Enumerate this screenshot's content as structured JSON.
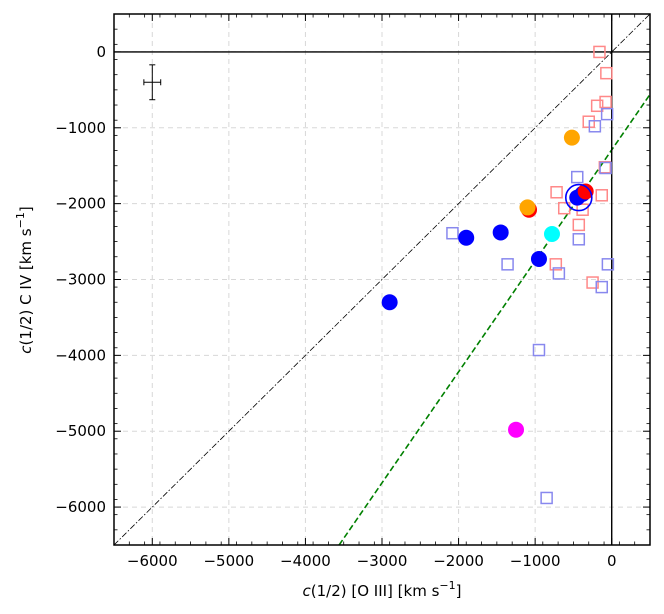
{
  "chart_data": {
    "type": "scatter",
    "title": "",
    "xlabel_html": [
      "c",
      "(1/2) [O III] [km s",
      "−1",
      "]"
    ],
    "ylabel_html": [
      "c",
      "(1/2) C IV [km s",
      "−1",
      "]"
    ],
    "xlim": [
      -6500,
      500
    ],
    "ylim": [
      -6500,
      500
    ],
    "xticks": [
      -6000,
      -5000,
      -4000,
      -3000,
      -2000,
      -1000,
      0
    ],
    "yticks": [
      -6000,
      -5000,
      -4000,
      -3000,
      -2000,
      -1000,
      0
    ],
    "xtick_labels": [
      "−6000",
      "−5000",
      "−4000",
      "−3000",
      "−2000",
      "−1000",
      "0"
    ],
    "ytick_labels": [
      "−6000",
      "−5000",
      "−4000",
      "−3000",
      "−2000",
      "−1000",
      "0"
    ],
    "grid": true,
    "reference_lines": [
      {
        "name": "one-to-one",
        "style": "dashdot",
        "color": "#000000",
        "points": [
          [
            -6500,
            -6500
          ],
          [
            500,
            500
          ]
        ]
      },
      {
        "name": "fit",
        "style": "dashed",
        "color": "#008000",
        "points": [
          [
            -3560,
            -6500
          ],
          [
            500,
            -560
          ]
        ]
      },
      {
        "name": "zero-x",
        "style": "solid",
        "color": "#000000",
        "points": [
          [
            0,
            -6500
          ],
          [
            0,
            500
          ]
        ]
      },
      {
        "name": "zero-y",
        "style": "solid",
        "color": "#000000",
        "points": [
          [
            -6500,
            0
          ],
          [
            500,
            0
          ]
        ]
      }
    ],
    "error_bar": {
      "x": -6000,
      "y": -400,
      "xerr": 110,
      "yerr": 230
    },
    "series": [
      {
        "name": "blue filled",
        "marker": "circle-filled",
        "color": "#0000ff",
        "points": [
          [
            -2900,
            -3300
          ],
          [
            -1900,
            -2450
          ],
          [
            -1450,
            -2380
          ],
          [
            -950,
            -2730
          ],
          [
            -450,
            -1920
          ],
          [
            -380,
            -1870
          ]
        ]
      },
      {
        "name": "red filled",
        "marker": "circle-filled",
        "color": "#ff0000",
        "points": [
          [
            -1080,
            -2080
          ],
          [
            -340,
            -1840
          ]
        ]
      },
      {
        "name": "orange filled",
        "marker": "circle-filled",
        "color": "#ffa500",
        "points": [
          [
            -1100,
            -2050
          ],
          [
            -520,
            -1130
          ]
        ]
      },
      {
        "name": "cyan filled",
        "marker": "circle-filled",
        "color": "#00ffff",
        "points": [
          [
            -780,
            -2400
          ]
        ]
      },
      {
        "name": "magenta filled",
        "marker": "circle-filled",
        "color": "#ff00ff",
        "points": [
          [
            -1250,
            -4980
          ]
        ]
      },
      {
        "name": "highlighted",
        "marker": "circle-open",
        "color": "#0000ff",
        "points": [
          [
            -430,
            -1920
          ]
        ]
      },
      {
        "name": "light red open",
        "marker": "square-open",
        "color": "#ff8888",
        "points": [
          [
            -160,
            0
          ],
          [
            -70,
            -280
          ],
          [
            -80,
            -660
          ],
          [
            -190,
            -710
          ],
          [
            -300,
            -920
          ],
          [
            -90,
            -1520
          ],
          [
            -720,
            -1850
          ],
          [
            -130,
            -1890
          ],
          [
            -620,
            -2060
          ],
          [
            -380,
            -2080
          ],
          [
            -430,
            -2280
          ],
          [
            -730,
            -2800
          ],
          [
            -250,
            -3040
          ]
        ]
      },
      {
        "name": "light blue open",
        "marker": "square-open",
        "color": "#8888ee",
        "points": [
          [
            -60,
            -820
          ],
          [
            -220,
            -980
          ],
          [
            -80,
            -1530
          ],
          [
            -450,
            -1650
          ],
          [
            -2080,
            -2390
          ],
          [
            -430,
            -2470
          ],
          [
            -1360,
            -2800
          ],
          [
            -690,
            -2920
          ],
          [
            -130,
            -3100
          ],
          [
            -50,
            -2800
          ],
          [
            -950,
            -3930
          ],
          [
            -850,
            -5880
          ]
        ]
      }
    ]
  }
}
